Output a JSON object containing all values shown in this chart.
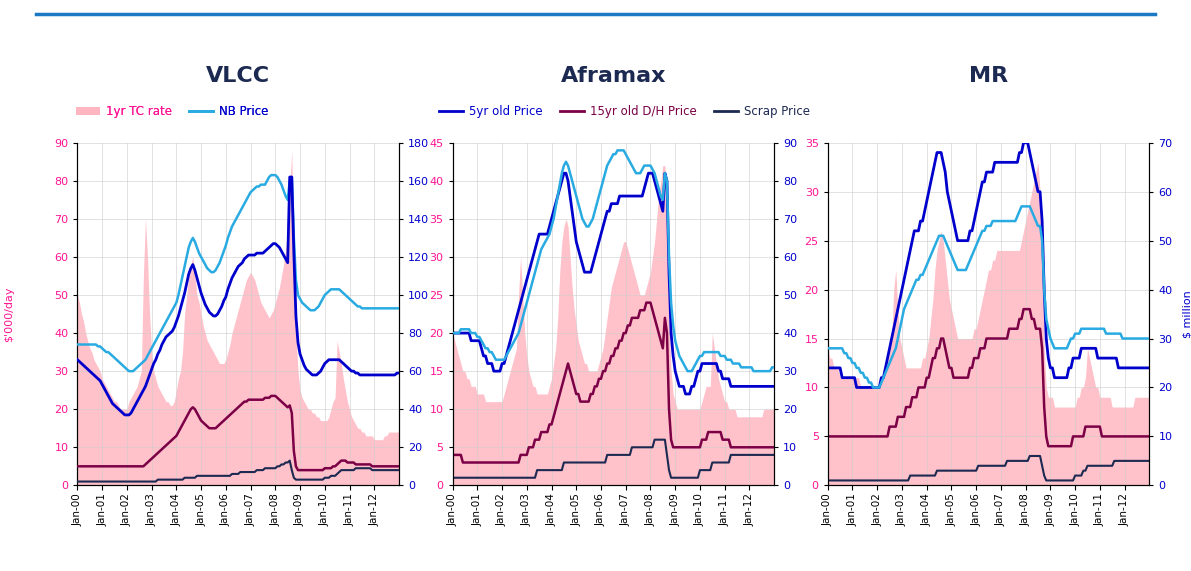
{
  "title_vlcc": "VLCC",
  "title_aframax": "Aframax",
  "title_mr": "MR",
  "legend_labels": [
    "1yr TC rate",
    "NB Price",
    "5yr old Price",
    "15yr old D/H Price",
    "Scrap Price"
  ],
  "vlcc_yleft_max": 90,
  "vlcc_yright_max": 180,
  "aframax_yleft_max": 45,
  "aframax_yright_max": 90,
  "mr_yleft_max": 35,
  "mr_yright_max": 70,
  "bg_color": "#FFFFFF",
  "grid_color": "#CCCCCC",
  "tc_fill_color": "#FFB6C1",
  "nb_price_color": "#29ABE2",
  "five_yr_color": "#0000CD",
  "fifteen_yr_color": "#7B0046",
  "scrap_color": "#1C2951",
  "left_label_color": "#FF1493",
  "right_label_color": "#0000CD",
  "title_color": "#1C2951",
  "top_line_color": "#1C7AC5"
}
